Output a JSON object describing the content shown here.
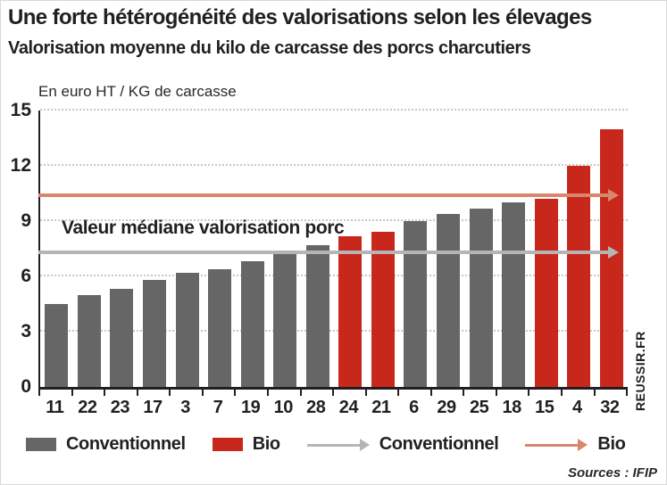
{
  "title": "Une forte hétérogénéité des valorisations selon les élevages",
  "subtitle": "Valorisation moyenne du kilo de carcasse des porcs charcutiers",
  "axis_unit": "En euro HT / KG de carcasse",
  "annotation": "Valeur médiane valorisation porc",
  "source": "Sources : IFIP",
  "watermark": "REUSSIR.FR",
  "colors": {
    "conventional": "#666666",
    "bio": "#c8271b",
    "median_conventional": "#b5b5b5",
    "median_bio": "#d9876c",
    "text": "#231f20",
    "grid": "#c9c7c5"
  },
  "legend": [
    {
      "type": "swatch",
      "color_key": "conventional",
      "label": "Conventionnel"
    },
    {
      "type": "swatch",
      "color_key": "bio",
      "label": "Bio"
    },
    {
      "type": "arrow",
      "color_key": "median_conventional",
      "label": "Conventionnel"
    },
    {
      "type": "arrow",
      "color_key": "median_bio",
      "label": "Bio"
    }
  ],
  "chart_data": {
    "type": "bar",
    "title": "Valorisation moyenne du kilo de carcasse des porcs charcutiers",
    "xlabel": "",
    "ylabel": "En euro HT / KG de carcasse",
    "categories": [
      "11",
      "22",
      "23",
      "17",
      "3",
      "7",
      "19",
      "10",
      "28",
      "24",
      "21",
      "6",
      "29",
      "25",
      "18",
      "15",
      "4",
      "32"
    ],
    "values": [
      4.5,
      5.0,
      5.3,
      5.8,
      6.2,
      6.4,
      6.8,
      7.3,
      7.7,
      8.2,
      8.4,
      9.0,
      9.4,
      9.7,
      10.0,
      10.2,
      12.0,
      14.0
    ],
    "bar_types": [
      "conv",
      "conv",
      "conv",
      "conv",
      "conv",
      "conv",
      "conv",
      "conv",
      "conv",
      "bio",
      "bio",
      "conv",
      "conv",
      "conv",
      "conv",
      "bio",
      "bio",
      "bio"
    ],
    "series_names": {
      "conv": "Conventionnel",
      "bio": "Bio"
    },
    "ylim": [
      0,
      15
    ],
    "yticks": [
      0,
      3,
      6,
      9,
      12,
      15
    ],
    "grid": "horizontal-dotted",
    "legend_position": "bottom",
    "median_lines": [
      {
        "label": "Conventionnel",
        "value": 7.3,
        "color": "#b5b5b5"
      },
      {
        "label": "Bio",
        "value": 10.4,
        "color": "#d9876c"
      }
    ]
  }
}
